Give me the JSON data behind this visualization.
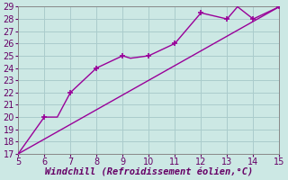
{
  "xlabel": "Windchill (Refroidissement éolien,°C)",
  "bg_color": "#cce8e4",
  "line_color": "#990099",
  "grid_color": "#aacccc",
  "xlim": [
    5,
    15
  ],
  "ylim": [
    17,
    29
  ],
  "xticks": [
    5,
    6,
    7,
    8,
    9,
    10,
    11,
    12,
    13,
    14,
    15
  ],
  "yticks": [
    17,
    18,
    19,
    20,
    21,
    22,
    23,
    24,
    25,
    26,
    27,
    28,
    29
  ],
  "line1_x": [
    5,
    6,
    6.5,
    7,
    8,
    9,
    9.3,
    10,
    11,
    12,
    13,
    13.4,
    14,
    15
  ],
  "line1_y": [
    17,
    20,
    20,
    22,
    24,
    25,
    24.8,
    25,
    26,
    28.5,
    28,
    29,
    28,
    29
  ],
  "line2_x": [
    5,
    15
  ],
  "line2_y": [
    17,
    29
  ],
  "marker1_x": [
    6,
    7,
    8,
    9,
    10,
    11,
    12,
    13,
    14,
    15
  ],
  "marker1_y": [
    20,
    22,
    24,
    25,
    25,
    26,
    28.5,
    28,
    28,
    29
  ],
  "font_size_xlabel": 7.5,
  "font_size_ticks": 7
}
